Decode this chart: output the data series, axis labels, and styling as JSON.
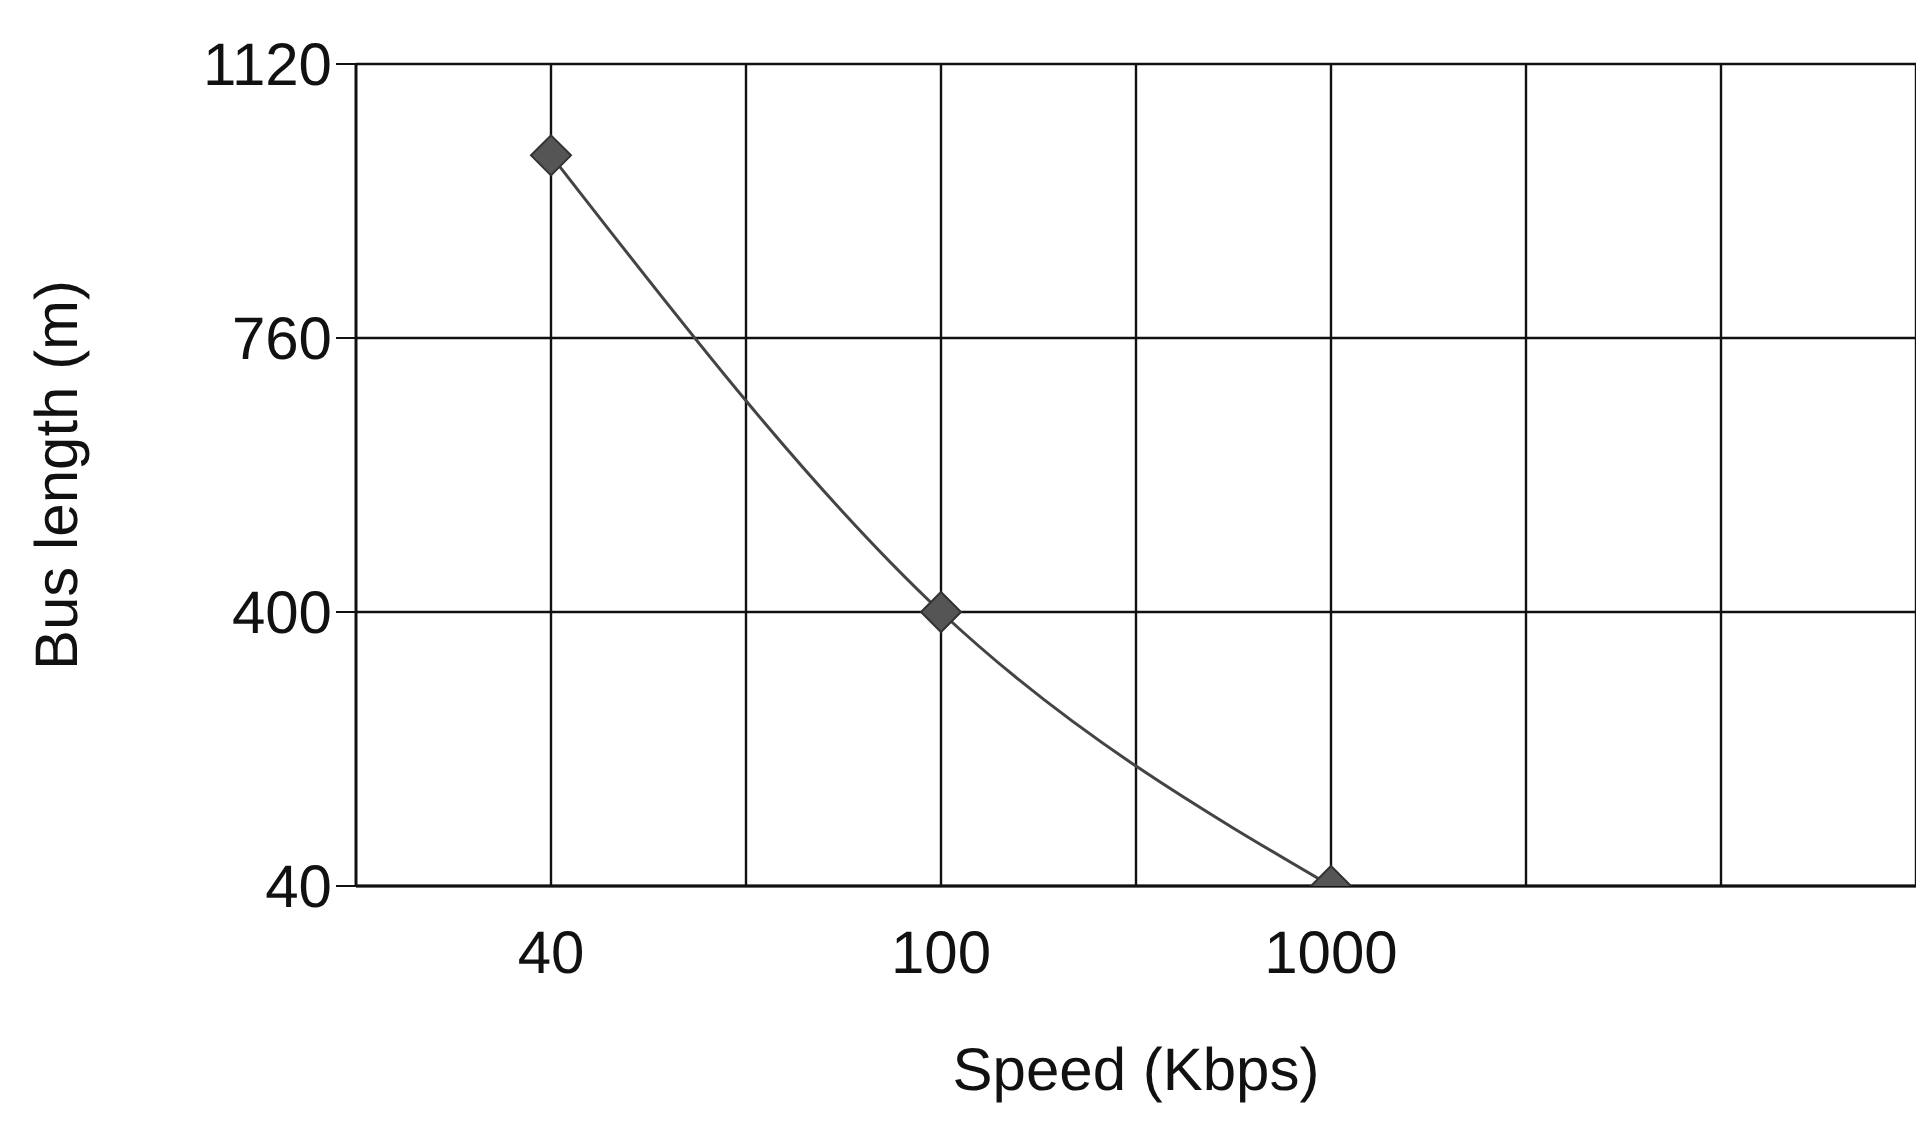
{
  "chart_data": {
    "type": "line",
    "xlabel": "Speed (Kbps)",
    "ylabel": "Bus length (m)",
    "categories": [
      "40",
      "100",
      "1000",
      null
    ],
    "series": [
      {
        "color": "#444444",
        "values": [
          1000,
          400,
          40,
          null
        ]
      }
    ],
    "ylim": [
      40,
      1120
    ],
    "yticks": [
      40,
      400,
      760,
      1120
    ],
    "grid": true,
    "marker": "diamond",
    "line_style": "solid"
  }
}
